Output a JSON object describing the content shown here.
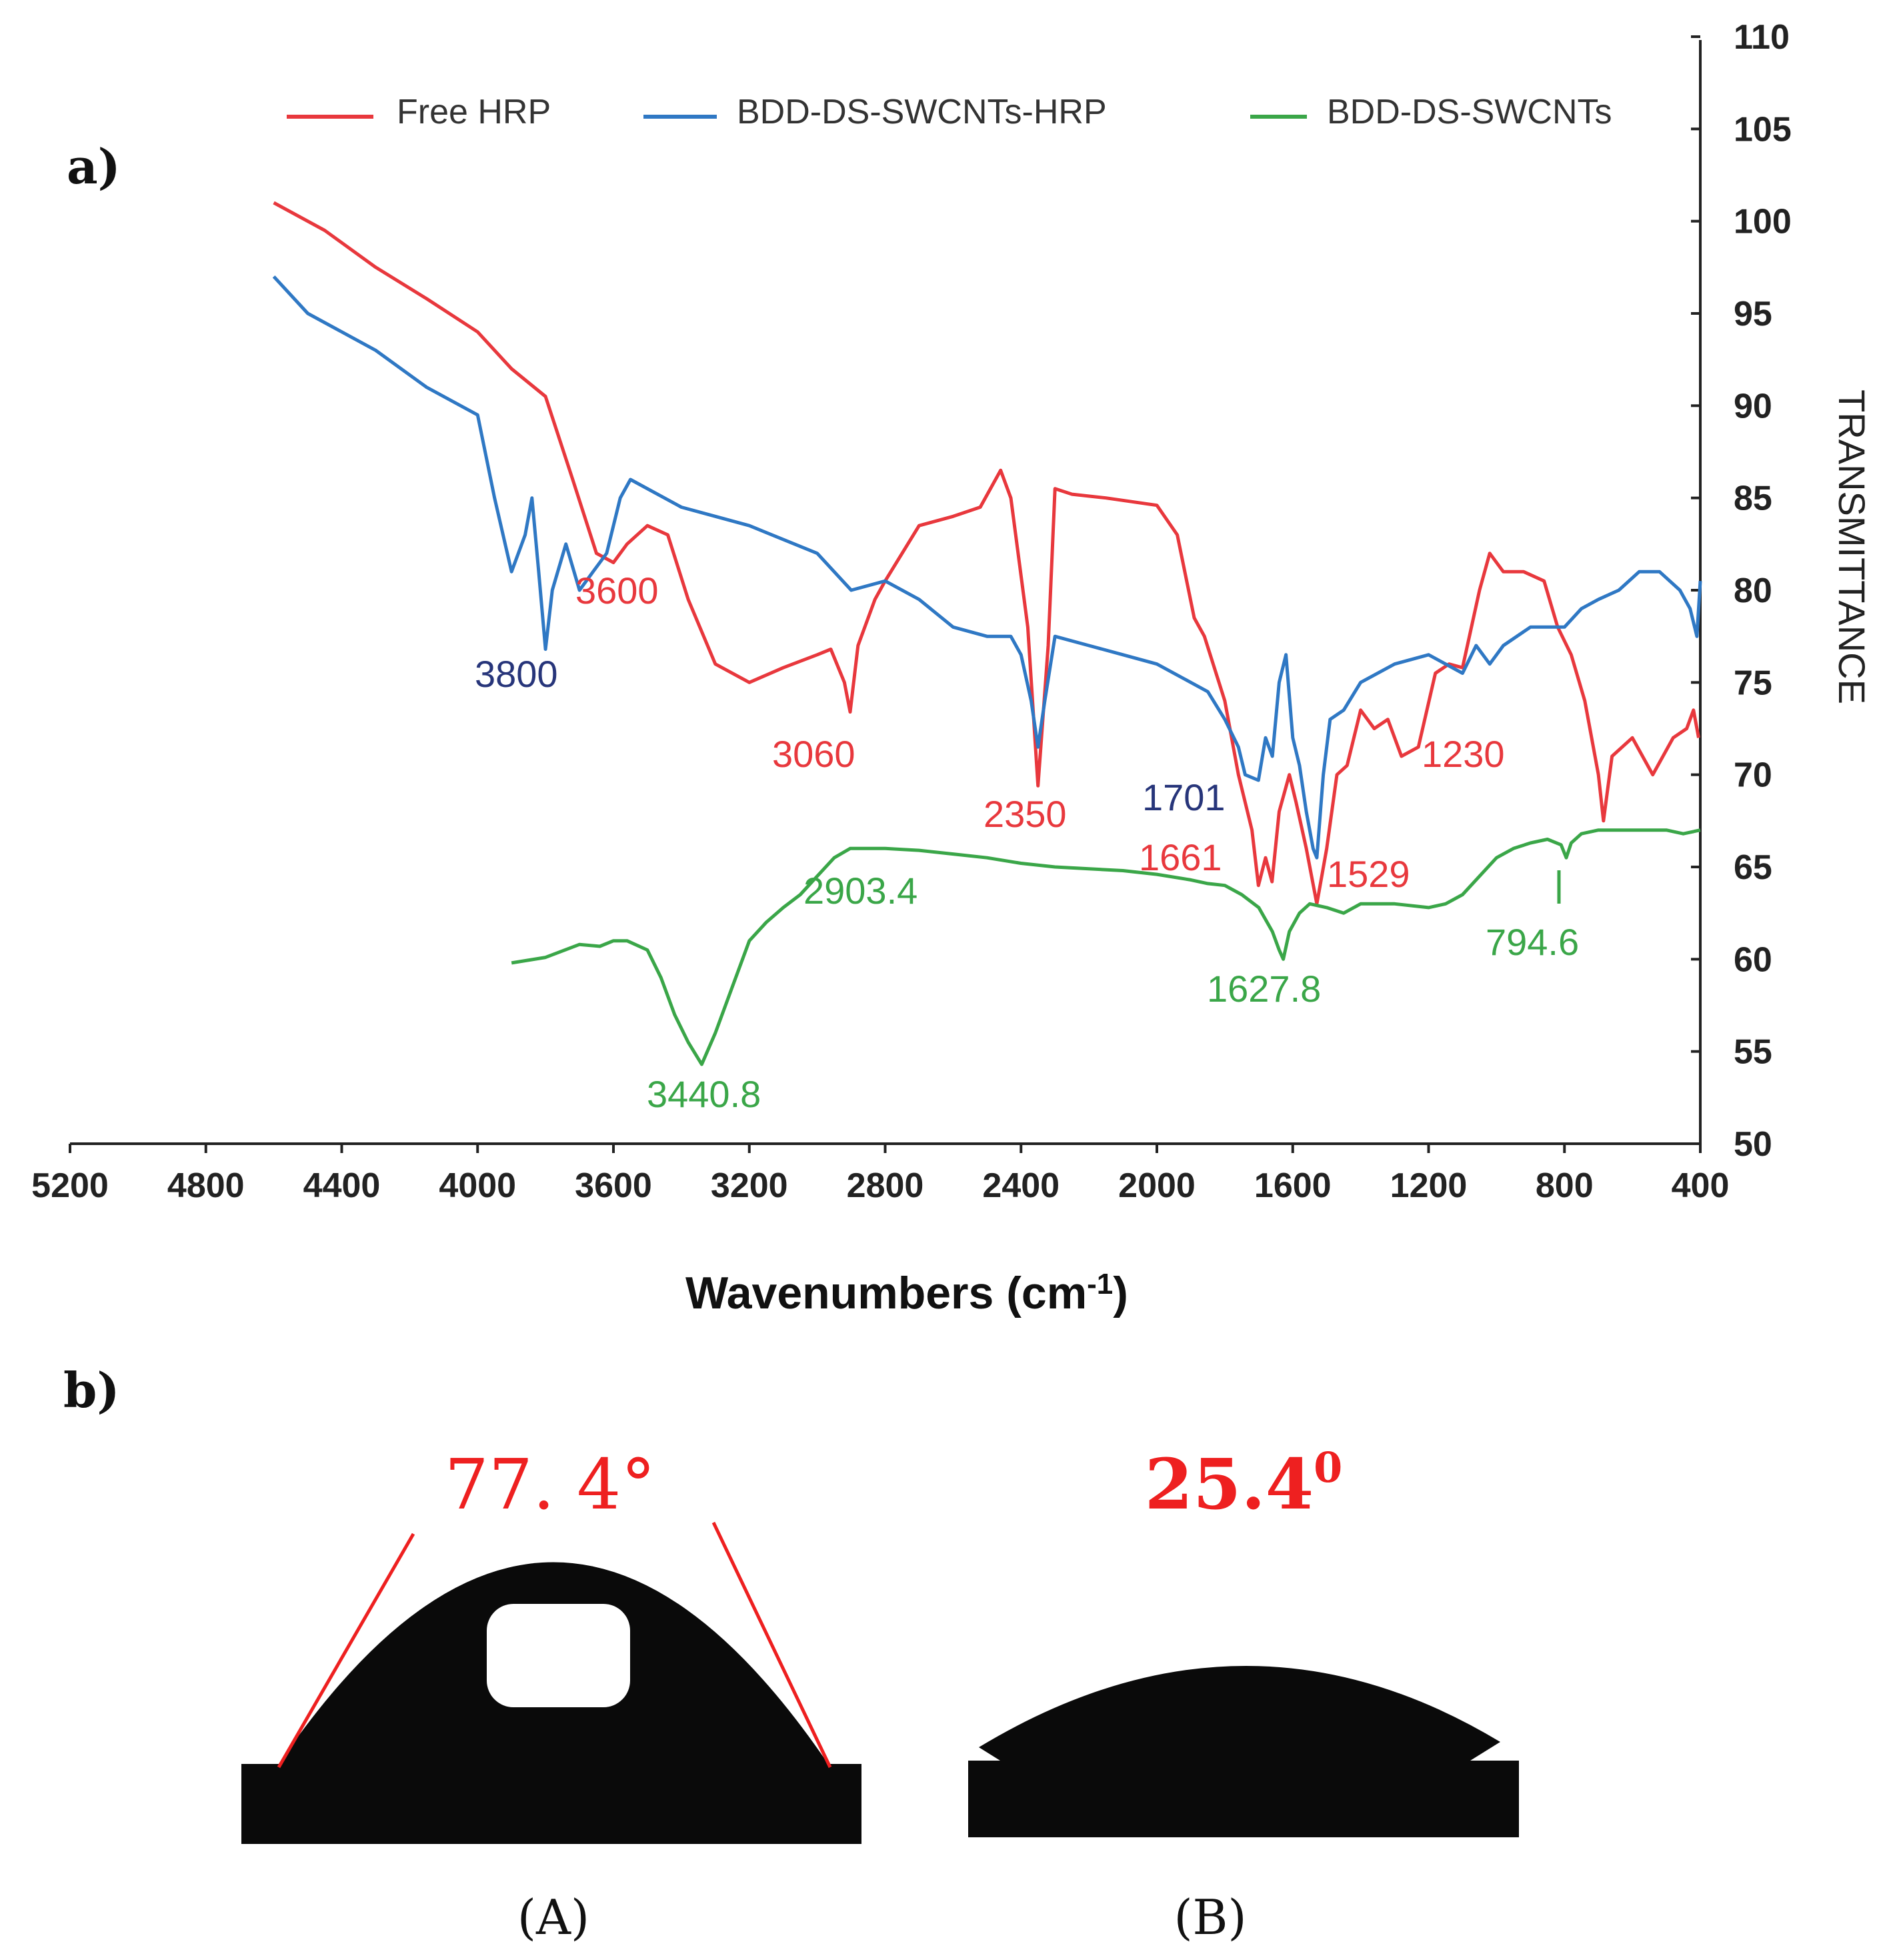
{
  "panel_a": {
    "label": "a)"
  },
  "panel_b": {
    "label": "b)"
  },
  "chart_data": {
    "type": "line",
    "title": "",
    "xlabel": "Wavenumbers (cm-1)",
    "ylabel": "TRANSMITTANCE",
    "xlim": [
      5200,
      400
    ],
    "ylim": [
      50,
      110
    ],
    "xticks": [
      5200,
      4800,
      4400,
      4000,
      3600,
      3200,
      2800,
      2400,
      2000,
      1600,
      1200,
      800,
      400
    ],
    "yticks": [
      50,
      55,
      60,
      65,
      70,
      75,
      80,
      85,
      90,
      95,
      100,
      105,
      110
    ],
    "legend_position": "top",
    "series": [
      {
        "name": "Free HRP",
        "color": "#e8383d",
        "points": [
          [
            4600,
            101
          ],
          [
            4450,
            99.5
          ],
          [
            4300,
            97.5
          ],
          [
            4150,
            95.8
          ],
          [
            4000,
            94
          ],
          [
            3900,
            92
          ],
          [
            3800,
            90.5
          ],
          [
            3720,
            86
          ],
          [
            3650,
            82
          ],
          [
            3600,
            81.5
          ],
          [
            3560,
            82.5
          ],
          [
            3500,
            83.5
          ],
          [
            3440,
            83
          ],
          [
            3380,
            79.5
          ],
          [
            3300,
            76
          ],
          [
            3200,
            75
          ],
          [
            3100,
            75.8
          ],
          [
            3000,
            76.5
          ],
          [
            2960,
            76.8
          ],
          [
            2920,
            75
          ],
          [
            2903,
            73.4
          ],
          [
            2880,
            77
          ],
          [
            2830,
            79.5
          ],
          [
            2800,
            80.5
          ],
          [
            2700,
            83.5
          ],
          [
            2600,
            84
          ],
          [
            2520,
            84.5
          ],
          [
            2460,
            86.5
          ],
          [
            2430,
            85
          ],
          [
            2380,
            78
          ],
          [
            2350,
            69.4
          ],
          [
            2320,
            77
          ],
          [
            2300,
            85.5
          ],
          [
            2250,
            85.2
          ],
          [
            2150,
            85
          ],
          [
            2000,
            84.6
          ],
          [
            1940,
            83
          ],
          [
            1890,
            78.5
          ],
          [
            1860,
            77.5
          ],
          [
            1800,
            74
          ],
          [
            1760,
            70
          ],
          [
            1720,
            67
          ],
          [
            1701,
            64
          ],
          [
            1680,
            65.5
          ],
          [
            1661,
            64.2
          ],
          [
            1640,
            68
          ],
          [
            1610,
            70
          ],
          [
            1590,
            68.5
          ],
          [
            1560,
            66
          ],
          [
            1529,
            63
          ],
          [
            1500,
            66
          ],
          [
            1470,
            70
          ],
          [
            1440,
            70.5
          ],
          [
            1400,
            73.5
          ],
          [
            1360,
            72.5
          ],
          [
            1320,
            73
          ],
          [
            1280,
            71
          ],
          [
            1230,
            71.5
          ],
          [
            1180,
            75.5
          ],
          [
            1140,
            76
          ],
          [
            1100,
            75.8
          ],
          [
            1050,
            80
          ],
          [
            1020,
            82
          ],
          [
            980,
            81
          ],
          [
            920,
            81
          ],
          [
            860,
            80.5
          ],
          [
            820,
            78
          ],
          [
            780,
            76.5
          ],
          [
            740,
            74
          ],
          [
            700,
            70
          ],
          [
            685,
            67.5
          ],
          [
            660,
            71
          ],
          [
            600,
            72
          ],
          [
            540,
            70
          ],
          [
            480,
            72
          ],
          [
            440,
            72.5
          ],
          [
            420,
            73.5
          ],
          [
            405,
            72
          ]
        ]
      },
      {
        "name": "BDD-DS-SWCNTs-HRP",
        "color": "#2f78c4",
        "points": [
          [
            4600,
            97
          ],
          [
            4500,
            95
          ],
          [
            4300,
            93
          ],
          [
            4150,
            91
          ],
          [
            4000,
            89.5
          ],
          [
            3950,
            85
          ],
          [
            3900,
            81
          ],
          [
            3860,
            83
          ],
          [
            3840,
            85
          ],
          [
            3820,
            81
          ],
          [
            3800,
            76.8
          ],
          [
            3780,
            80
          ],
          [
            3740,
            82.5
          ],
          [
            3700,
            80
          ],
          [
            3660,
            81
          ],
          [
            3620,
            82
          ],
          [
            3580,
            85
          ],
          [
            3550,
            86
          ],
          [
            3400,
            84.5
          ],
          [
            3300,
            84
          ],
          [
            3200,
            83.5
          ],
          [
            3000,
            82
          ],
          [
            2900,
            80
          ],
          [
            2800,
            80.5
          ],
          [
            2700,
            79.5
          ],
          [
            2600,
            78
          ],
          [
            2500,
            77.5
          ],
          [
            2430,
            77.5
          ],
          [
            2400,
            76.5
          ],
          [
            2370,
            74
          ],
          [
            2350,
            71.5
          ],
          [
            2330,
            74
          ],
          [
            2300,
            77.5
          ],
          [
            2200,
            77
          ],
          [
            2100,
            76.5
          ],
          [
            2000,
            76
          ],
          [
            1900,
            75
          ],
          [
            1850,
            74.5
          ],
          [
            1800,
            73
          ],
          [
            1760,
            71.5
          ],
          [
            1740,
            70
          ],
          [
            1701,
            69.7
          ],
          [
            1680,
            72
          ],
          [
            1660,
            71
          ],
          [
            1640,
            75
          ],
          [
            1620,
            76.5
          ],
          [
            1600,
            72
          ],
          [
            1580,
            70.5
          ],
          [
            1560,
            68
          ],
          [
            1540,
            66
          ],
          [
            1529,
            65.5
          ],
          [
            1510,
            70
          ],
          [
            1490,
            73
          ],
          [
            1450,
            73.5
          ],
          [
            1400,
            75
          ],
          [
            1300,
            76
          ],
          [
            1200,
            76.5
          ],
          [
            1150,
            76
          ],
          [
            1100,
            75.5
          ],
          [
            1060,
            77
          ],
          [
            1020,
            76
          ],
          [
            980,
            77
          ],
          [
            900,
            78
          ],
          [
            800,
            78
          ],
          [
            750,
            79
          ],
          [
            700,
            79.5
          ],
          [
            640,
            80
          ],
          [
            580,
            81
          ],
          [
            520,
            81
          ],
          [
            460,
            80
          ],
          [
            430,
            79
          ],
          [
            410,
            77.5
          ],
          [
            400,
            80.5
          ]
        ]
      },
      {
        "name": "BDD-DS-SWCNTs",
        "color": "#3aa648",
        "points": [
          [
            3900,
            59.8
          ],
          [
            3800,
            60.1
          ],
          [
            3700,
            60.8
          ],
          [
            3640,
            60.7
          ],
          [
            3600,
            61
          ],
          [
            3560,
            61
          ],
          [
            3500,
            60.5
          ],
          [
            3460,
            59
          ],
          [
            3420,
            57
          ],
          [
            3380,
            55.5
          ],
          [
            3340,
            54.3
          ],
          [
            3300,
            56
          ],
          [
            3250,
            58.5
          ],
          [
            3200,
            61
          ],
          [
            3150,
            62
          ],
          [
            3100,
            62.8
          ],
          [
            3050,
            63.5
          ],
          [
            3000,
            64.5
          ],
          [
            2950,
            65.5
          ],
          [
            2903,
            66
          ],
          [
            2850,
            66
          ],
          [
            2800,
            66
          ],
          [
            2700,
            65.9
          ],
          [
            2600,
            65.7
          ],
          [
            2500,
            65.5
          ],
          [
            2400,
            65.2
          ],
          [
            2300,
            65
          ],
          [
            2200,
            64.9
          ],
          [
            2100,
            64.8
          ],
          [
            2000,
            64.6
          ],
          [
            1900,
            64.3
          ],
          [
            1850,
            64.1
          ],
          [
            1800,
            64
          ],
          [
            1750,
            63.5
          ],
          [
            1700,
            62.8
          ],
          [
            1660,
            61.5
          ],
          [
            1640,
            60.5
          ],
          [
            1627.8,
            60
          ],
          [
            1610,
            61.5
          ],
          [
            1580,
            62.5
          ],
          [
            1550,
            63
          ],
          [
            1500,
            62.8
          ],
          [
            1450,
            62.5
          ],
          [
            1400,
            63
          ],
          [
            1300,
            63
          ],
          [
            1200,
            62.8
          ],
          [
            1150,
            63
          ],
          [
            1100,
            63.5
          ],
          [
            1050,
            64.5
          ],
          [
            1000,
            65.5
          ],
          [
            950,
            66
          ],
          [
            900,
            66.3
          ],
          [
            850,
            66.5
          ],
          [
            810,
            66.2
          ],
          [
            794.6,
            65.5
          ],
          [
            780,
            66.3
          ],
          [
            750,
            66.8
          ],
          [
            700,
            67
          ],
          [
            600,
            67
          ],
          [
            500,
            67
          ],
          [
            450,
            66.8
          ],
          [
            400,
            67
          ]
        ]
      }
    ],
    "annotations": [
      {
        "text": "3800",
        "series": "BDD-DS-SWCNTs-HRP",
        "color": "#27357a"
      },
      {
        "text": "3600",
        "series": "Free HRP",
        "color": "#e8383d"
      },
      {
        "text": "3060",
        "series": "Free HRP",
        "color": "#e8383d"
      },
      {
        "text": "2350",
        "series": "Free HRP",
        "color": "#e8383d"
      },
      {
        "text": "1701",
        "series": "BDD-DS-SWCNTs-HRP",
        "color": "#27357a"
      },
      {
        "text": "1661",
        "series": "Free HRP",
        "color": "#e8383d"
      },
      {
        "text": "1529",
        "series": "Free HRP",
        "color": "#e8383d"
      },
      {
        "text": "1230",
        "series": "Free HRP",
        "color": "#e8383d"
      },
      {
        "text": "2903.4",
        "series": "BDD-DS-SWCNTs",
        "color": "#3aa648"
      },
      {
        "text": "3440.8",
        "series": "BDD-DS-SWCNTs",
        "color": "#3aa648"
      },
      {
        "text": "1627.8",
        "series": "BDD-DS-SWCNTs",
        "color": "#3aa648"
      },
      {
        "text": "794.6",
        "series": "BDD-DS-SWCNTs",
        "color": "#3aa648"
      }
    ]
  },
  "contact_angles": [
    {
      "caption": "(A)",
      "angle": "77. 4°"
    },
    {
      "caption": "(B)",
      "angle": "25.40"
    }
  ]
}
